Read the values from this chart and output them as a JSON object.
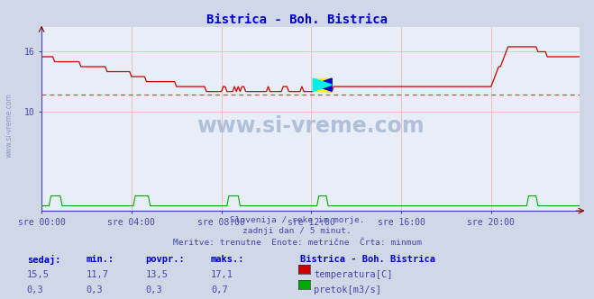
{
  "title": "Bistrica - Boh. Bistrica",
  "title_color": "#0000cc",
  "bg_color": "#d0d8e8",
  "plot_bg_color": "#e8eef8",
  "grid_color": "#ffaaaa",
  "axis_color": "#4444aa",
  "text_color": "#4444aa",
  "watermark_color": "#7799cc",
  "ylim": [
    0,
    18.5
  ],
  "ytick_vals": [
    10,
    16
  ],
  "xlim": [
    0,
    287
  ],
  "xtick_positions": [
    0,
    48,
    96,
    144,
    192,
    240
  ],
  "xtick_labels": [
    "sre 00:00",
    "sre 04:00",
    "sre 08:00",
    "sre 12:00",
    "sre 16:00",
    "sre 20:00"
  ],
  "min_line_value": 11.7,
  "min_line_color": "#dd4444",
  "temp_color": "#cc0000",
  "flow_color": "#00aa00",
  "flow_baseline_color": "#0000cc",
  "subtitle_lines": [
    "Slovenija / reke in morje.",
    "zadnji dan / 5 minut.",
    "Meritve: trenutne  Enote: metrične  Črta: minmum"
  ],
  "table_headers": [
    "sedaj:",
    "min.:",
    "povpr.:",
    "maks.:"
  ],
  "row1_values": [
    "15,5",
    "11,7",
    "13,5",
    "17,1"
  ],
  "row2_values": [
    "0,3",
    "0,3",
    "0,3",
    "0,7"
  ],
  "legend_title": "Bistrica - Boh. Bistrica",
  "legend_items": [
    "temperatura[C]",
    "pretok[m3/s]"
  ],
  "legend_colors": [
    "#cc0000",
    "#00aa00"
  ],
  "watermark_text": "www.si-vreme.com",
  "side_label": "www.si-vreme.com"
}
